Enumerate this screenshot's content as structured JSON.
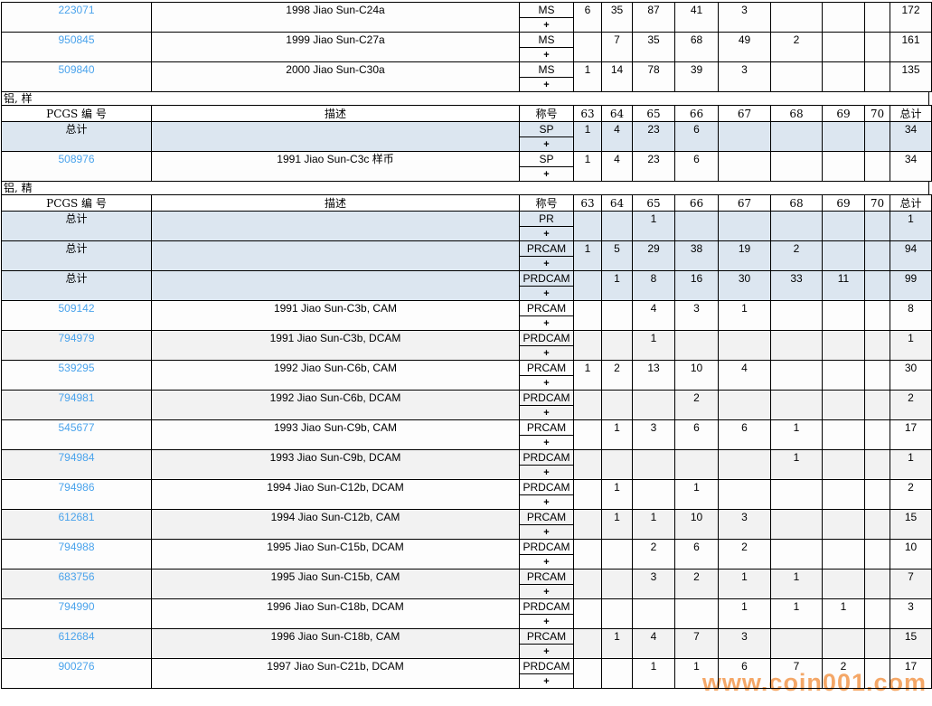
{
  "columns": {
    "pcgs": "PCGS 编 号",
    "desc": "描述",
    "designation": "称号",
    "grades": [
      "63",
      "64",
      "65",
      "66",
      "67",
      "68",
      "69",
      "70"
    ],
    "total": "总计"
  },
  "labels": {
    "plus": "+",
    "total_row": "总计"
  },
  "colors": {
    "link": "#4aa3ec",
    "total_row_bg": "#dce6f0",
    "alt_row_bg": "#f2f2f2",
    "watermark": "#f6a868"
  },
  "watermark": {
    "text": "www.coin001.com"
  },
  "sections": [
    {
      "label": "",
      "show_header": false,
      "rows": [
        {
          "type": "link",
          "shade": "",
          "pcgs": "223071",
          "desc": "1998 Jiao Sun-C24a",
          "designation": "MS",
          "values": [
            "6",
            "35",
            "87",
            "41",
            "3",
            "",
            "",
            ""
          ],
          "total": "172"
        },
        {
          "type": "link",
          "shade": "",
          "pcgs": "950845",
          "desc": "1999 Jiao Sun-C27a",
          "designation": "MS",
          "values": [
            "",
            "7",
            "35",
            "68",
            "49",
            "2",
            "",
            ""
          ],
          "total": "161"
        },
        {
          "type": "link",
          "shade": "",
          "pcgs": "509840",
          "desc": "2000 Jiao Sun-C30a",
          "designation": "MS",
          "values": [
            "1",
            "14",
            "78",
            "39",
            "3",
            "",
            "",
            ""
          ],
          "total": "135"
        }
      ]
    },
    {
      "label": "铝, 样",
      "show_header": true,
      "rows": [
        {
          "type": "total",
          "shade": "total",
          "pcgs": "总计",
          "desc": "",
          "designation": "SP",
          "values": [
            "1",
            "4",
            "23",
            "6",
            "",
            "",
            "",
            ""
          ],
          "total": "34"
        },
        {
          "type": "link",
          "shade": "",
          "pcgs": "508976",
          "desc": "1991 Jiao Sun-C3c 样币",
          "designation": "SP",
          "values": [
            "1",
            "4",
            "23",
            "6",
            "",
            "",
            "",
            ""
          ],
          "total": "34"
        }
      ]
    },
    {
      "label": "铝, 精",
      "show_header": true,
      "rows": [
        {
          "type": "total",
          "shade": "total",
          "pcgs": "总计",
          "desc": "",
          "designation": "PR",
          "values": [
            "",
            "",
            "1",
            "",
            "",
            "",
            "",
            ""
          ],
          "total": "1"
        },
        {
          "type": "total",
          "shade": "total",
          "pcgs": "总计",
          "desc": "",
          "designation": "PRCAM",
          "values": [
            "1",
            "5",
            "29",
            "38",
            "19",
            "2",
            "",
            ""
          ],
          "total": "94"
        },
        {
          "type": "total",
          "shade": "total",
          "pcgs": "总计",
          "desc": "",
          "designation": "PRDCAM",
          "values": [
            "",
            "1",
            "8",
            "16",
            "30",
            "33",
            "11",
            ""
          ],
          "total": "99"
        },
        {
          "type": "link",
          "shade": "",
          "pcgs": "509142",
          "desc": "1991 Jiao Sun-C3b, CAM",
          "designation": "PRCAM",
          "values": [
            "",
            "",
            "4",
            "3",
            "1",
            "",
            "",
            ""
          ],
          "total": "8"
        },
        {
          "type": "link",
          "shade": "alt",
          "pcgs": "794979",
          "desc": "1991 Jiao Sun-C3b, DCAM",
          "designation": "PRDCAM",
          "values": [
            "",
            "",
            "1",
            "",
            "",
            "",
            "",
            ""
          ],
          "total": "1"
        },
        {
          "type": "link",
          "shade": "",
          "pcgs": "539295",
          "desc": "1992 Jiao Sun-C6b, CAM",
          "designation": "PRCAM",
          "values": [
            "1",
            "2",
            "13",
            "10",
            "4",
            "",
            "",
            ""
          ],
          "total": "30"
        },
        {
          "type": "link",
          "shade": "alt",
          "pcgs": "794981",
          "desc": "1992 Jiao Sun-C6b, DCAM",
          "designation": "PRDCAM",
          "values": [
            "",
            "",
            "",
            "2",
            "",
            "",
            "",
            ""
          ],
          "total": "2"
        },
        {
          "type": "link",
          "shade": "",
          "pcgs": "545677",
          "desc": "1993 Jiao Sun-C9b, CAM",
          "designation": "PRCAM",
          "values": [
            "",
            "1",
            "3",
            "6",
            "6",
            "1",
            "",
            ""
          ],
          "total": "17"
        },
        {
          "type": "link",
          "shade": "alt",
          "pcgs": "794984",
          "desc": "1993 Jiao Sun-C9b, DCAM",
          "designation": "PRDCAM",
          "values": [
            "",
            "",
            "",
            "",
            "",
            "1",
            "",
            ""
          ],
          "total": "1"
        },
        {
          "type": "link",
          "shade": "",
          "pcgs": "794986",
          "desc": "1994 Jiao Sun-C12b, DCAM",
          "designation": "PRDCAM",
          "values": [
            "",
            "1",
            "",
            "1",
            "",
            "",
            "",
            ""
          ],
          "total": "2"
        },
        {
          "type": "link",
          "shade": "alt",
          "pcgs": "612681",
          "desc": "1994 Jiao Sun-C12b, CAM",
          "designation": "PRCAM",
          "values": [
            "",
            "1",
            "1",
            "10",
            "3",
            "",
            "",
            ""
          ],
          "total": "15"
        },
        {
          "type": "link",
          "shade": "",
          "pcgs": "794988",
          "desc": "1995 Jiao Sun-C15b, DCAM",
          "designation": "PRDCAM",
          "values": [
            "",
            "",
            "2",
            "6",
            "2",
            "",
            "",
            ""
          ],
          "total": "10"
        },
        {
          "type": "link",
          "shade": "alt",
          "pcgs": "683756",
          "desc": "1995 Jiao Sun-C15b, CAM",
          "designation": "PRCAM",
          "values": [
            "",
            "",
            "3",
            "2",
            "1",
            "1",
            "",
            ""
          ],
          "total": "7"
        },
        {
          "type": "link",
          "shade": "",
          "pcgs": "794990",
          "desc": "1996 Jiao Sun-C18b, DCAM",
          "designation": "PRDCAM",
          "values": [
            "",
            "",
            "",
            "",
            "1",
            "1",
            "1",
            ""
          ],
          "total": "3"
        },
        {
          "type": "link",
          "shade": "alt",
          "pcgs": "612684",
          "desc": "1996 Jiao Sun-C18b, CAM",
          "designation": "PRCAM",
          "values": [
            "",
            "1",
            "4",
            "7",
            "3",
            "",
            "",
            ""
          ],
          "total": "15"
        },
        {
          "type": "link",
          "shade": "",
          "pcgs": "900276",
          "desc": "1997 Jiao Sun-C21b, DCAM",
          "designation": "PRDCAM",
          "values": [
            "",
            "",
            "1",
            "1",
            "6",
            "7",
            "2",
            ""
          ],
          "total": "17"
        }
      ]
    }
  ]
}
